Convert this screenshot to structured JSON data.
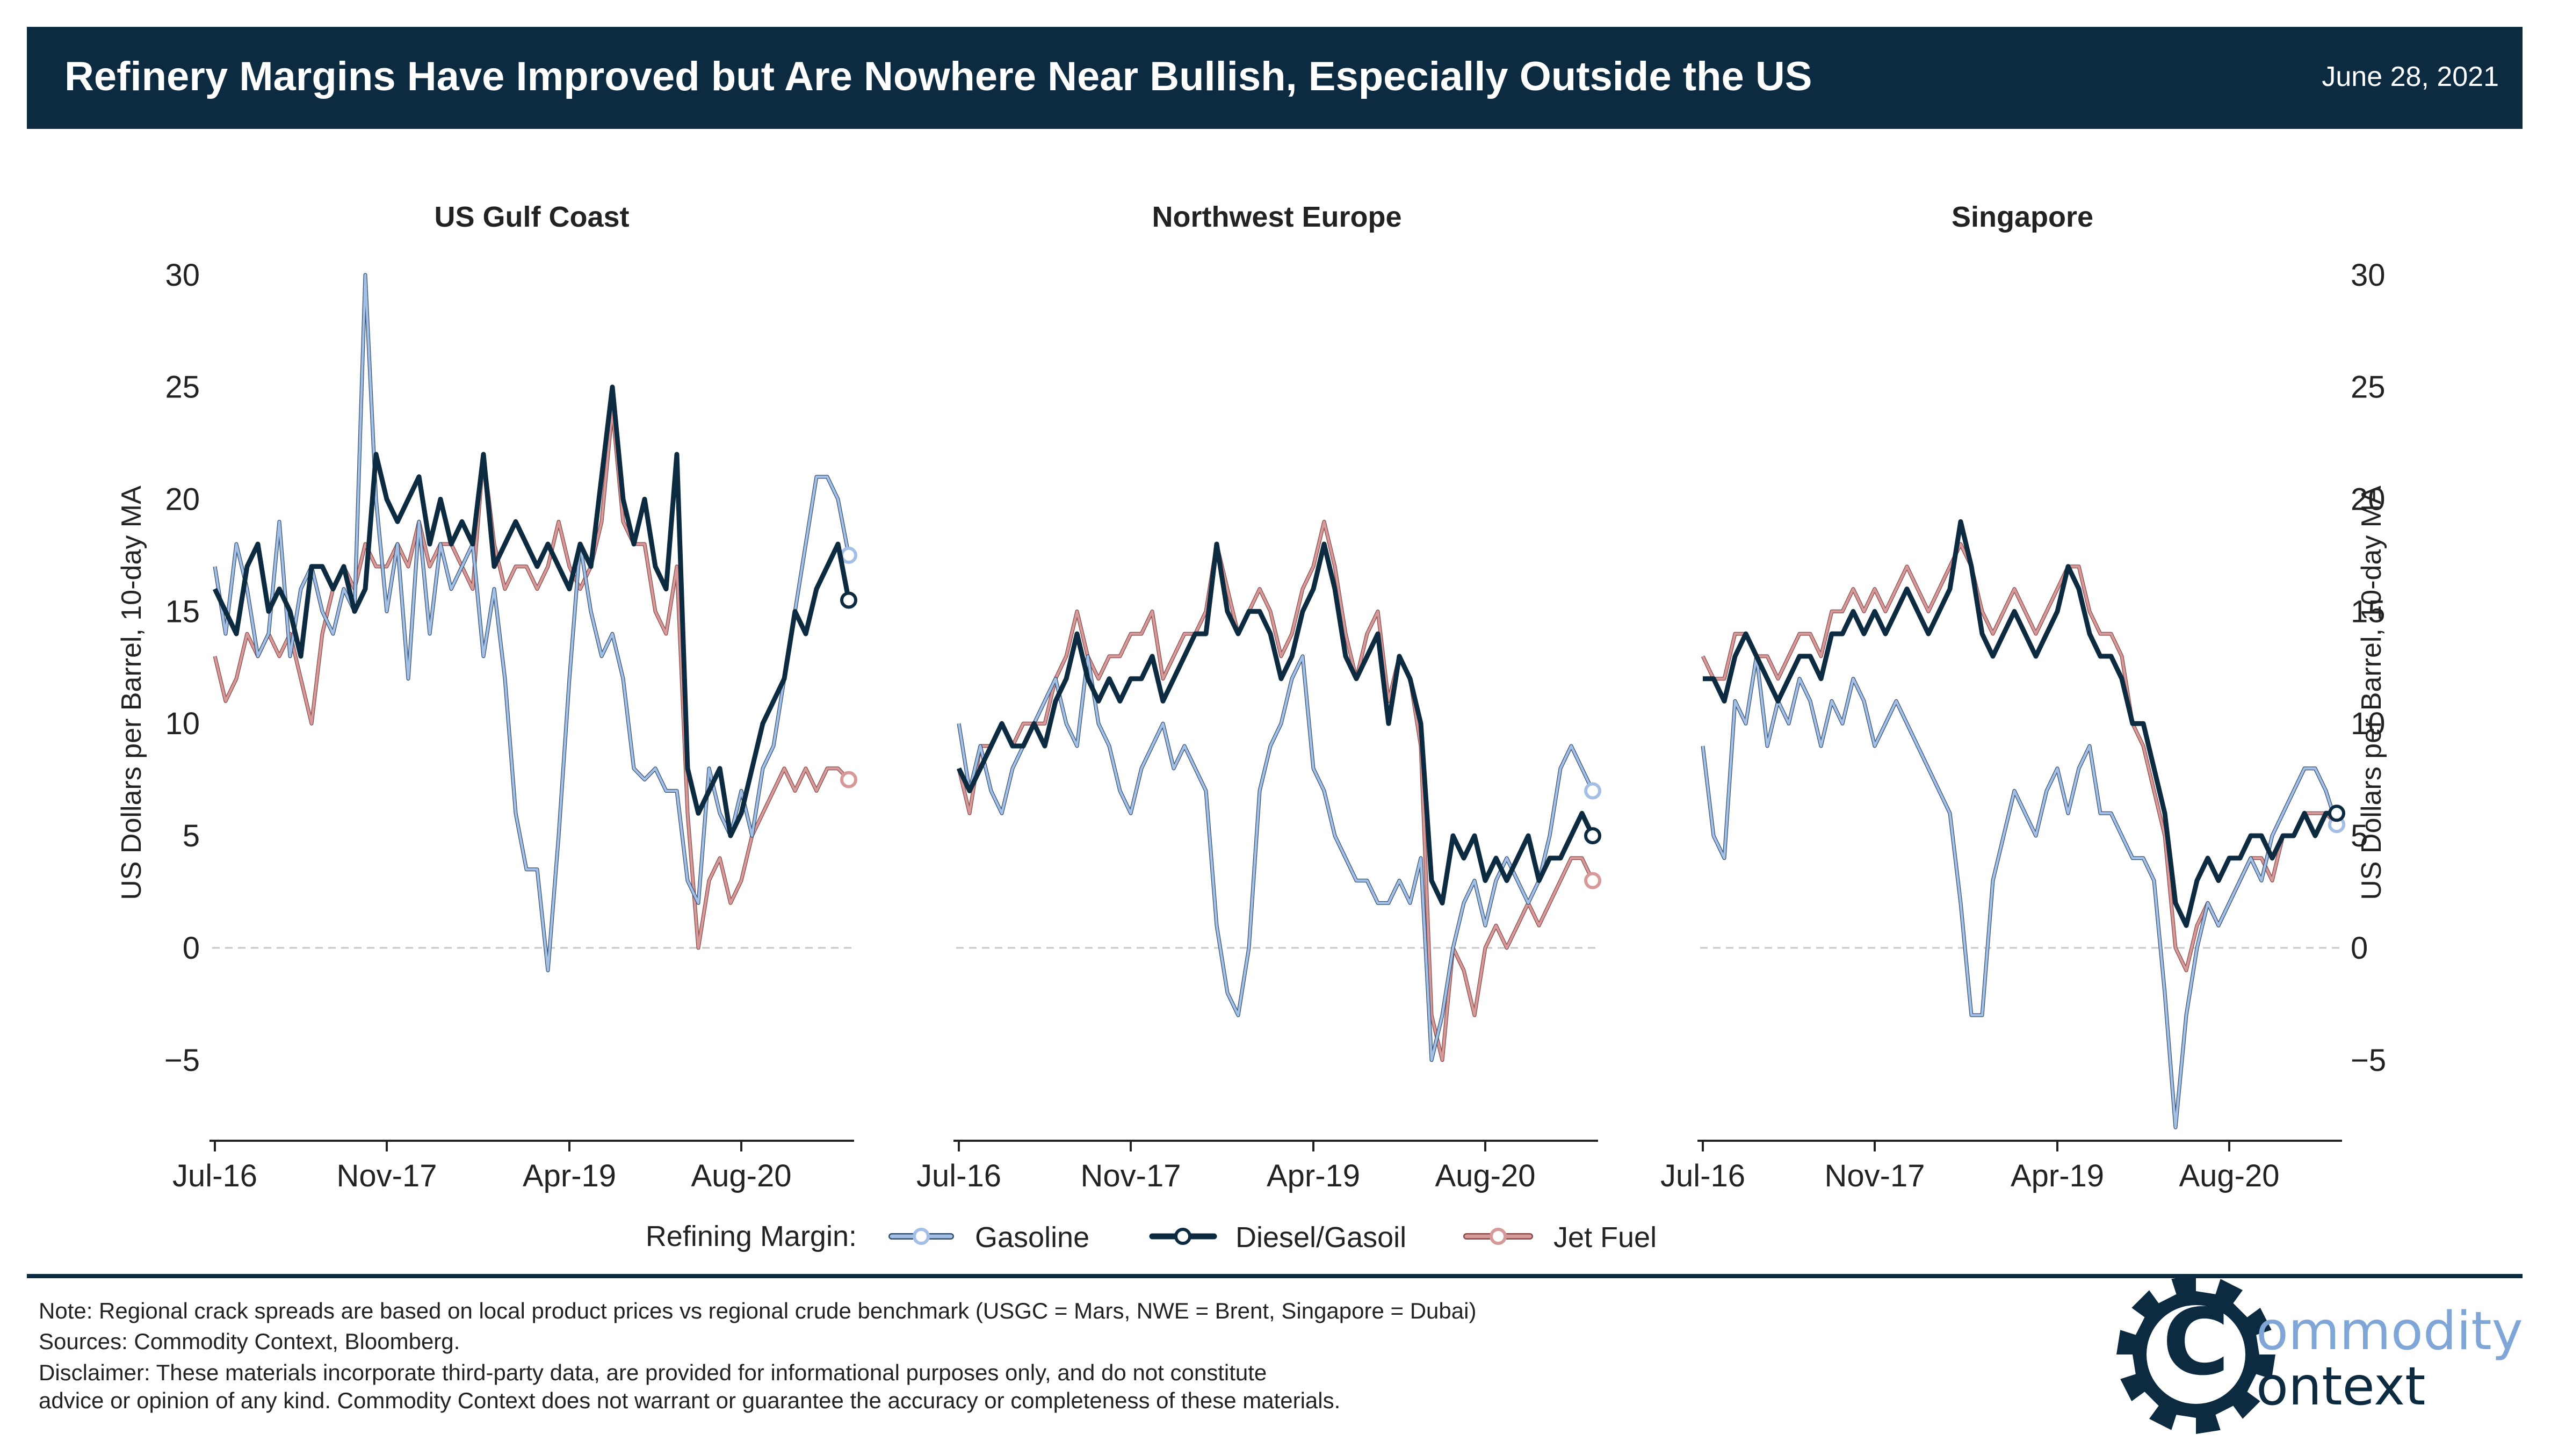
{
  "header": {
    "title": "Refinery Margins Have Improved but Are Nowhere Near Bullish, Especially Outside the US",
    "date": "June 28, 2021",
    "bg_color": "#0d2b40"
  },
  "chart_data": {
    "type": "line",
    "ylabel": "US Dollars per Barrel, 10-day MA",
    "ylim": [
      -8.5,
      31
    ],
    "y_ticks": [
      "30",
      "25",
      "20",
      "15",
      "10",
      "5",
      "0",
      "−5"
    ],
    "y_tick_values": [
      30,
      25,
      20,
      15,
      10,
      5,
      0,
      -5
    ],
    "x_ticks": [
      "Jul-16",
      "Nov-17",
      "Apr-19",
      "Aug-20"
    ],
    "x_tick_values": [
      "2016-07",
      "2017-11",
      "2019-04",
      "2020-08"
    ],
    "xlim": [
      "2016-07",
      "2021-06"
    ],
    "zero_line": true,
    "colors": {
      "Gasoline": "#a4bfe6",
      "Diesel/Gasoil": "#0d2b40",
      "Jet Fuel": "#d69999"
    },
    "panels": [
      {
        "title": "US Gulf Coast",
        "x": [
          "2016-07",
          "2016-08",
          "2016-09",
          "2016-10",
          "2016-11",
          "2016-12",
          "2017-01",
          "2017-02",
          "2017-03",
          "2017-04",
          "2017-05",
          "2017-06",
          "2017-07",
          "2017-08",
          "2017-09",
          "2017-10",
          "2017-11",
          "2017-12",
          "2018-01",
          "2018-02",
          "2018-03",
          "2018-04",
          "2018-05",
          "2018-06",
          "2018-07",
          "2018-08",
          "2018-09",
          "2018-10",
          "2018-11",
          "2018-12",
          "2019-01",
          "2019-02",
          "2019-03",
          "2019-04",
          "2019-05",
          "2019-06",
          "2019-07",
          "2019-08",
          "2019-09",
          "2019-10",
          "2019-11",
          "2019-12",
          "2020-01",
          "2020-02",
          "2020-03",
          "2020-04",
          "2020-05",
          "2020-06",
          "2020-07",
          "2020-08",
          "2020-09",
          "2020-10",
          "2020-11",
          "2020-12",
          "2021-01",
          "2021-02",
          "2021-03",
          "2021-04",
          "2021-05",
          "2021-06"
        ],
        "series": [
          {
            "name": "Gasoline",
            "values": [
              17,
              14,
              18,
              16,
              13,
              14,
              19,
              13,
              16,
              17,
              15,
              14,
              16,
              15,
              30,
              20,
              15,
              18,
              12,
              19,
              14,
              18,
              16,
              17,
              18,
              13,
              16,
              12,
              6,
              3.5,
              3.5,
              -1,
              5,
              12,
              18,
              15,
              13,
              14,
              12,
              8,
              7.5,
              8,
              7,
              7,
              3,
              2,
              8,
              6,
              5,
              7,
              5,
              8,
              9,
              12,
              15,
              18,
              21,
              21,
              20,
              17.5
            ]
          },
          {
            "name": "Diesel/Gasoil",
            "values": [
              16,
              15,
              14,
              17,
              18,
              15,
              16,
              15,
              13,
              17,
              17,
              16,
              17,
              15,
              16,
              22,
              20,
              19,
              20,
              21,
              18,
              20,
              18,
              19,
              18,
              22,
              17,
              18,
              19,
              18,
              17,
              18,
              17,
              16,
              18,
              17,
              21,
              25,
              20,
              18,
              20,
              17,
              16,
              22,
              8,
              6,
              7,
              8,
              5,
              6,
              8,
              10,
              11,
              12,
              15,
              14,
              16,
              17,
              18,
              15.5
            ]
          },
          {
            "name": "Jet Fuel",
            "values": [
              13,
              11,
              12,
              14,
              13,
              14,
              13,
              14,
              12,
              10,
              14,
              16,
              17,
              16,
              18,
              17,
              17,
              18,
              17,
              19,
              17,
              18,
              18,
              17,
              16,
              22,
              18,
              16,
              17,
              17,
              16,
              17,
              19,
              17,
              16,
              17,
              19,
              24,
              19,
              18,
              18,
              15,
              14,
              17,
              6,
              0,
              3,
              4,
              2,
              3,
              5,
              6,
              7,
              8,
              7,
              8,
              7,
              8,
              8,
              7.5
            ]
          }
        ]
      },
      {
        "title": "Northwest Europe",
        "x": [
          "2016-07",
          "2016-08",
          "2016-09",
          "2016-10",
          "2016-11",
          "2016-12",
          "2017-01",
          "2017-02",
          "2017-03",
          "2017-04",
          "2017-05",
          "2017-06",
          "2017-07",
          "2017-08",
          "2017-09",
          "2017-10",
          "2017-11",
          "2017-12",
          "2018-01",
          "2018-02",
          "2018-03",
          "2018-04",
          "2018-05",
          "2018-06",
          "2018-07",
          "2018-08",
          "2018-09",
          "2018-10",
          "2018-11",
          "2018-12",
          "2019-01",
          "2019-02",
          "2019-03",
          "2019-04",
          "2019-05",
          "2019-06",
          "2019-07",
          "2019-08",
          "2019-09",
          "2019-10",
          "2019-11",
          "2019-12",
          "2020-01",
          "2020-02",
          "2020-03",
          "2020-04",
          "2020-05",
          "2020-06",
          "2020-07",
          "2020-08",
          "2020-09",
          "2020-10",
          "2020-11",
          "2020-12",
          "2021-01",
          "2021-02",
          "2021-03",
          "2021-04",
          "2021-05",
          "2021-06"
        ],
        "series": [
          {
            "name": "Gasoline",
            "values": [
              10,
              7,
              9,
              7,
              6,
              8,
              9,
              10,
              11,
              12,
              10,
              9,
              13,
              10,
              9,
              7,
              6,
              8,
              9,
              10,
              8,
              9,
              8,
              7,
              1,
              -2,
              -3,
              0,
              7,
              9,
              10,
              12,
              13,
              8,
              7,
              5,
              4,
              3,
              3,
              2,
              2,
              3,
              2,
              4,
              -5,
              -3,
              0,
              2,
              3,
              1,
              3,
              4,
              3,
              2,
              3,
              5,
              8,
              9,
              8,
              7
            ]
          },
          {
            "name": "Diesel/Gasoil",
            "values": [
              8,
              7,
              8,
              9,
              10,
              9,
              9,
              10,
              9,
              11,
              12,
              14,
              12,
              11,
              12,
              11,
              12,
              12,
              13,
              11,
              12,
              13,
              14,
              14,
              18,
              15,
              14,
              15,
              15,
              14,
              12,
              13,
              15,
              16,
              18,
              16,
              13,
              12,
              13,
              14,
              10,
              13,
              12,
              10,
              3,
              2,
              5,
              4,
              5,
              3,
              4,
              3,
              4,
              5,
              3,
              4,
              4,
              5,
              6,
              5
            ]
          },
          {
            "name": "Jet Fuel",
            "values": [
              8,
              6,
              9,
              9,
              10,
              9,
              10,
              10,
              10,
              12,
              13,
              15,
              13,
              12,
              13,
              13,
              14,
              14,
              15,
              12,
              13,
              14,
              14,
              15,
              18,
              16,
              14,
              15,
              16,
              15,
              13,
              14,
              16,
              17,
              19,
              17,
              14,
              12,
              14,
              15,
              11,
              13,
              12,
              9,
              -3,
              -5,
              0,
              -1,
              -3,
              0,
              1,
              0,
              1,
              2,
              1,
              2,
              3,
              4,
              4,
              3
            ]
          }
        ]
      },
      {
        "title": "Singapore",
        "x": [
          "2016-07",
          "2016-08",
          "2016-09",
          "2016-10",
          "2016-11",
          "2016-12",
          "2017-01",
          "2017-02",
          "2017-03",
          "2017-04",
          "2017-05",
          "2017-06",
          "2017-07",
          "2017-08",
          "2017-09",
          "2017-10",
          "2017-11",
          "2017-12",
          "2018-01",
          "2018-02",
          "2018-03",
          "2018-04",
          "2018-05",
          "2018-06",
          "2018-07",
          "2018-08",
          "2018-09",
          "2018-10",
          "2018-11",
          "2018-12",
          "2019-01",
          "2019-02",
          "2019-03",
          "2019-04",
          "2019-05",
          "2019-06",
          "2019-07",
          "2019-08",
          "2019-09",
          "2019-10",
          "2019-11",
          "2019-12",
          "2020-01",
          "2020-02",
          "2020-03",
          "2020-04",
          "2020-05",
          "2020-06",
          "2020-07",
          "2020-08",
          "2020-09",
          "2020-10",
          "2020-11",
          "2020-12",
          "2021-01",
          "2021-02",
          "2021-03",
          "2021-04",
          "2021-05",
          "2021-06"
        ],
        "series": [
          {
            "name": "Gasoline",
            "values": [
              9,
              5,
              4,
              11,
              10,
              13,
              9,
              11,
              10,
              12,
              11,
              9,
              11,
              10,
              12,
              11,
              9,
              10,
              11,
              10,
              9,
              8,
              7,
              6,
              2,
              -3,
              -3,
              3,
              5,
              7,
              6,
              5,
              7,
              8,
              6,
              8,
              9,
              6,
              6,
              5,
              4,
              4,
              3,
              -2,
              -8,
              -3,
              0,
              2,
              1,
              2,
              3,
              4,
              3,
              5,
              6,
              7,
              8,
              8,
              7,
              5.5
            ]
          },
          {
            "name": "Diesel/Gasoil",
            "values": [
              12,
              12,
              11,
              13,
              14,
              13,
              12,
              11,
              12,
              13,
              13,
              12,
              14,
              14,
              15,
              14,
              15,
              14,
              15,
              16,
              15,
              14,
              15,
              16,
              19,
              17,
              14,
              13,
              14,
              15,
              14,
              13,
              14,
              15,
              17,
              16,
              14,
              13,
              13,
              12,
              10,
              10,
              8,
              6,
              2,
              1,
              3,
              4,
              3,
              4,
              4,
              5,
              5,
              4,
              5,
              5,
              6,
              5,
              6,
              6
            ]
          },
          {
            "name": "Jet Fuel",
            "values": [
              13,
              12,
              12,
              14,
              14,
              13,
              13,
              12,
              13,
              14,
              14,
              13,
              15,
              15,
              16,
              15,
              16,
              15,
              16,
              17,
              16,
              15,
              16,
              17,
              18,
              17,
              15,
              14,
              15,
              16,
              15,
              14,
              15,
              16,
              17,
              17,
              15,
              14,
              14,
              13,
              10,
              9,
              7,
              5,
              0,
              -1,
              1,
              2,
              1,
              2,
              3,
              4,
              4,
              3,
              5,
              5,
              6,
              6,
              6,
              5.5
            ]
          }
        ]
      }
    ]
  },
  "legend": {
    "title": "Refining Margin:",
    "items": [
      "Gasoline",
      "Diesel/Gasoil",
      "Jet Fuel"
    ]
  },
  "footer": {
    "note": "Note: Regional crack spreads are based on local product prices vs regional crude benchmark (USGC = Mars, NWE = Brent, Singapore = Dubai)",
    "sources": "Sources: Commodity Context, Bloomberg.",
    "disclaimer_1": "Disclaimer: These materials incorporate third-party data, are provided for informational purposes only, and do not constitute",
    "disclaimer_2": "advice or opinion of any kind. Commodity Context does not warrant or guarantee the accuracy or completeness of these materials."
  },
  "logo": {
    "line1": "ommodity",
    "line2": "ontext",
    "letter": "C",
    "color_dark": "#0d2b40",
    "color_light": "#7fa6d6"
  }
}
